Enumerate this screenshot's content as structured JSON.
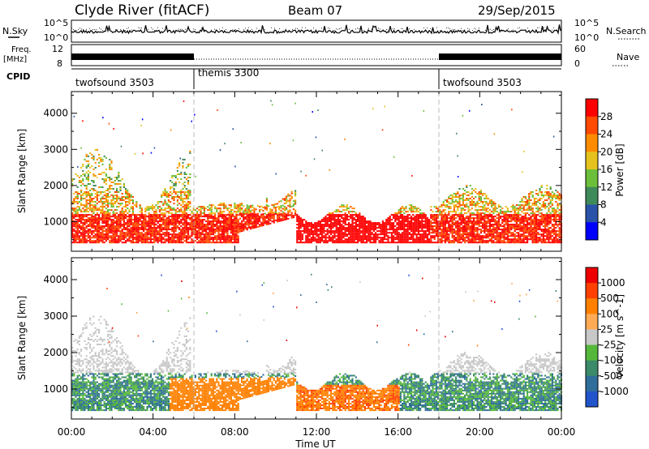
{
  "header": {
    "station": "Clyde River (fitACF)",
    "beam": "Beam 07",
    "date": "29/Sep/2015"
  },
  "side_labels": {
    "nsky": "N.Sky",
    "freq_top": "Freq.",
    "freq_unit": "[MHz]",
    "cpid": "CPID",
    "nsearch": "N.Search",
    "nave": "Nave"
  },
  "strip_ticks": {
    "nsky_left": [
      "10^5",
      "10^0"
    ],
    "nsky_right": [
      "10^5",
      "10^0"
    ],
    "freq_left": [
      "12",
      "8"
    ],
    "nave_right": [
      "60",
      "0"
    ]
  },
  "cpid_segments": [
    {
      "label": "twofsound 3503",
      "start": 0,
      "end": 6
    },
    {
      "label": "themis 3300",
      "start": 6,
      "end": 18
    },
    {
      "label": "twofsound 3503",
      "start": 18,
      "end": 24
    }
  ],
  "chart_data": [
    {
      "type": "heatmap",
      "panel": "power",
      "ylabel": "Slant Range [km]",
      "xlabel": "",
      "xlim": [
        0,
        24
      ],
      "ylim": [
        180,
        4600
      ],
      "y_ticks": [
        "1000",
        "2000",
        "3000",
        "4000"
      ],
      "x_ticks": [
        "00:00",
        "04:00",
        "08:00",
        "12:00",
        "16:00",
        "20:00",
        "00:00"
      ],
      "colorbar": {
        "label": "Power [dB]",
        "ticks": [
          "28",
          "24",
          "20",
          "16",
          "12",
          "8",
          "4"
        ],
        "colors": [
          "#0000ff",
          "#2a52a8",
          "#3f8a5a",
          "#6cbf3a",
          "#e6c21e",
          "#ff8c00",
          "#ff4a00",
          "#ff0000"
        ]
      }
    },
    {
      "type": "heatmap",
      "panel": "velocity",
      "ylabel": "Slant Range [km]",
      "xlabel": "Time UT",
      "xlim": [
        0,
        24
      ],
      "ylim": [
        180,
        4600
      ],
      "y_ticks": [
        "1000",
        "2000",
        "3000",
        "4000"
      ],
      "x_ticks": [
        "00:00",
        "04:00",
        "08:00",
        "12:00",
        "16:00",
        "20:00",
        "00:00"
      ],
      "colorbar": {
        "label": "Velocity [m s^-1]",
        "ticks": [
          "1000",
          "500",
          "100",
          "25",
          "-25",
          "-100",
          "-500",
          "-1000"
        ],
        "colors": [
          "#2255cc",
          "#2f6e9a",
          "#3b8a6a",
          "#55b83a",
          "#c8c8c8",
          "#ffaa55",
          "#ff8000",
          "#ff4000",
          "#ee0000"
        ]
      }
    }
  ]
}
